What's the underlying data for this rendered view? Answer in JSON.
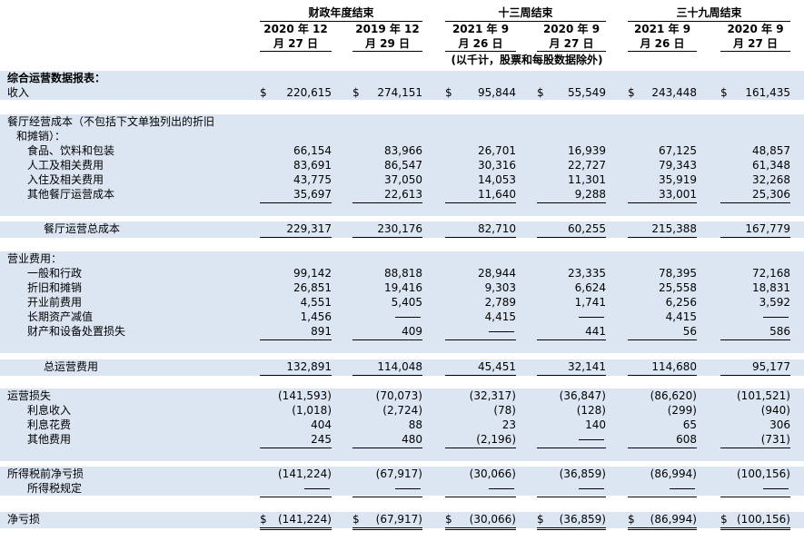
{
  "header": {
    "groups": [
      {
        "label": "财政年度结束",
        "cols": [
          {
            "line1": "2020 年 12",
            "line2": "月 27 日"
          },
          {
            "line1": "2019 年 12",
            "line2": "月 29 日"
          }
        ]
      },
      {
        "label": "十三周结束",
        "cols": [
          {
            "line1": "2021 年 9",
            "line2": "月 26 日"
          },
          {
            "line1": "2020 年 9",
            "line2": "月 27 日"
          }
        ]
      },
      {
        "label": "三十九周结束",
        "cols": [
          {
            "line1": "2021 年 9",
            "line2": "月 26 日"
          },
          {
            "line1": "2020 年 9",
            "line2": "月 27 日"
          }
        ]
      }
    ],
    "note": "(以千计，股票和每股数据除外)"
  },
  "currency_symbol": "$",
  "sections": {
    "summary_title": "综合运营数据报表：",
    "revenue_label": "收入",
    "restaurant_costs_title_line1": "餐厅经营成本（不包括下文单独列出的折旧",
    "restaurant_costs_title_line2": "和摊销）：",
    "operating_expenses_title": "营业费用："
  },
  "rows": {
    "revenue": [
      "220,615",
      "274,151",
      "95,844",
      "55,549",
      "243,448",
      "161,435"
    ],
    "food": {
      "label": "食品、饮料和包装",
      "values": [
        "66,154",
        "83,966",
        "26,701",
        "16,939",
        "67,125",
        "48,857"
      ]
    },
    "labor": {
      "label": "人工及相关费用",
      "values": [
        "83,691",
        "86,547",
        "30,316",
        "22,727",
        "79,343",
        "61,348"
      ]
    },
    "occupancy": {
      "label": "入住及相关费用",
      "values": [
        "43,775",
        "37,050",
        "14,053",
        "11,301",
        "35,919",
        "32,268"
      ]
    },
    "other_rest": {
      "label": "其他餐厅运营成本",
      "values": [
        "35,697",
        "22,613",
        "11,640",
        "9,288",
        "33,001",
        "25,306"
      ]
    },
    "total_rest": {
      "label": "餐厅运营总成本",
      "values": [
        "229,317",
        "230,176",
        "82,710",
        "60,255",
        "215,388",
        "167,779"
      ]
    },
    "ga": {
      "label": "一般和行政",
      "values": [
        "99,142",
        "88,818",
        "28,944",
        "23,335",
        "78,395",
        "72,168"
      ]
    },
    "da": {
      "label": "折旧和摊销",
      "values": [
        "26,851",
        "19,416",
        "9,303",
        "6,624",
        "25,558",
        "18,831"
      ]
    },
    "preopening": {
      "label": "开业前费用",
      "values": [
        "4,551",
        "5,405",
        "2,789",
        "1,741",
        "6,256",
        "3,592"
      ]
    },
    "impairment": {
      "label": "长期资产减值",
      "values": [
        "1,456",
        "",
        "4,415",
        "",
        "4,415",
        ""
      ]
    },
    "disposal": {
      "label": "财产和设备处置损失",
      "values": [
        "891",
        "409",
        "",
        "441",
        "56",
        "586"
      ]
    },
    "total_opex": {
      "label": "总运营费用",
      "values": [
        "132,891",
        "114,048",
        "45,451",
        "32,141",
        "114,680",
        "95,177"
      ]
    },
    "operating_loss": {
      "label": "运营损失",
      "values": [
        "(141,593)",
        "(70,073)",
        "(32,317)",
        "(36,847)",
        "(86,620)",
        "(101,521)"
      ]
    },
    "interest_income": {
      "label": "利息收入",
      "values": [
        "(1,018)",
        "(2,724)",
        "(78)",
        "(128)",
        "(299)",
        "(940)"
      ]
    },
    "interest_expense": {
      "label": "利息花费",
      "values": [
        "404",
        "88",
        "23",
        "140",
        "65",
        "306"
      ]
    },
    "other_expense": {
      "label": "其他费用",
      "values": [
        "245",
        "480",
        "(2,196)",
        "",
        "608",
        "(731)"
      ]
    },
    "pretax": {
      "label": "所得税前净亏损",
      "values": [
        "(141,224)",
        "(67,917)",
        "(30,066)",
        "(36,859)",
        "(86,994)",
        "(100,156)"
      ]
    },
    "tax": {
      "label": "所得税规定",
      "values": [
        "",
        "",
        "",
        "",
        "",
        ""
      ]
    },
    "net_loss": {
      "label": "净亏损",
      "values": [
        "(141,224)",
        "(67,917)",
        "(30,066)",
        "(36,859)",
        "(86,994)",
        "(100,156)"
      ]
    }
  }
}
